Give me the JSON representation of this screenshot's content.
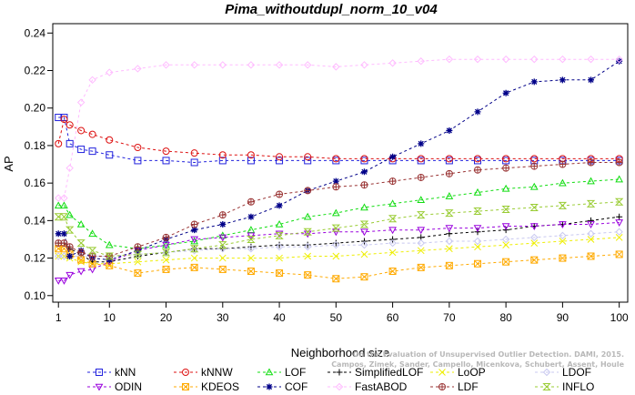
{
  "chart_data": {
    "type": "line",
    "title": "Pima_withoutdupl_norm_10_v04",
    "xlabel": "Neighborhood size",
    "ylabel": "AP",
    "xlim": [
      1,
      100
    ],
    "ylim": [
      0.1,
      0.245
    ],
    "xticks": [
      1,
      10,
      20,
      30,
      40,
      50,
      60,
      70,
      80,
      90,
      100
    ],
    "yticks": [
      0.1,
      0.12,
      0.14,
      0.16,
      0.18,
      0.2,
      0.22,
      0.24
    ],
    "grid": false,
    "legend_position": "bottom",
    "credit": "Campos, Zimek, Sander, Campello, Micenkova, Schubert, Assent, Houle",
    "credit_line1": "On the Evaluation of Unsupervised Outlier Detection. DAMI, 2015.",
    "x_sample": [
      1,
      2,
      3,
      5,
      7,
      10,
      15,
      20,
      25,
      30,
      35,
      40,
      45,
      50,
      55,
      60,
      65,
      70,
      75,
      80,
      85,
      90,
      95,
      100
    ],
    "series": [
      {
        "name": "kNN",
        "color": "#2222dd",
        "marker": "square",
        "values": [
          0.195,
          0.195,
          0.181,
          0.178,
          0.177,
          0.175,
          0.172,
          0.172,
          0.171,
          0.172,
          0.172,
          0.172,
          0.172,
          0.172,
          0.172,
          0.172,
          0.172,
          0.172,
          0.172,
          0.172,
          0.172,
          0.172,
          0.172,
          0.172
        ]
      },
      {
        "name": "kNNW",
        "color": "#dd1111",
        "marker": "circle",
        "values": [
          0.181,
          0.194,
          0.191,
          0.188,
          0.186,
          0.183,
          0.179,
          0.177,
          0.176,
          0.175,
          0.175,
          0.174,
          0.174,
          0.173,
          0.173,
          0.173,
          0.173,
          0.173,
          0.173,
          0.173,
          0.173,
          0.173,
          0.173,
          0.173
        ]
      },
      {
        "name": "LOF",
        "color": "#11dd11",
        "marker": "triangle-up",
        "values": [
          0.148,
          0.148,
          0.143,
          0.138,
          0.133,
          0.127,
          0.125,
          0.127,
          0.129,
          0.132,
          0.135,
          0.138,
          0.142,
          0.144,
          0.147,
          0.149,
          0.151,
          0.153,
          0.155,
          0.157,
          0.158,
          0.16,
          0.161,
          0.162
        ]
      },
      {
        "name": "SimplifiedLOF",
        "color": "#000000",
        "marker": "plus",
        "values": [
          0.128,
          0.128,
          0.125,
          0.122,
          0.118,
          0.118,
          0.121,
          0.123,
          0.125,
          0.125,
          0.126,
          0.127,
          0.127,
          0.128,
          0.129,
          0.13,
          0.131,
          0.133,
          0.134,
          0.135,
          0.137,
          0.138,
          0.14,
          0.142
        ]
      },
      {
        "name": "LoOP",
        "color": "#eeee00",
        "marker": "x",
        "values": [
          0.121,
          0.121,
          0.12,
          0.118,
          0.117,
          0.117,
          0.118,
          0.119,
          0.12,
          0.12,
          0.12,
          0.12,
          0.121,
          0.121,
          0.122,
          0.123,
          0.124,
          0.125,
          0.126,
          0.127,
          0.128,
          0.129,
          0.13,
          0.131
        ]
      },
      {
        "name": "LDOF",
        "color": "#c8c8f0",
        "marker": "diamond",
        "values": [
          0.121,
          0.121,
          0.121,
          0.121,
          0.121,
          0.121,
          0.122,
          0.123,
          0.124,
          0.125,
          0.125,
          0.126,
          0.126,
          0.127,
          0.127,
          0.128,
          0.128,
          0.129,
          0.129,
          0.13,
          0.131,
          0.132,
          0.133,
          0.134
        ]
      },
      {
        "name": "ODIN",
        "color": "#9900dd",
        "marker": "triangle-down",
        "values": [
          0.108,
          0.108,
          0.111,
          0.113,
          0.114,
          0.118,
          0.124,
          0.127,
          0.13,
          0.131,
          0.132,
          0.133,
          0.133,
          0.134,
          0.134,
          0.135,
          0.135,
          0.136,
          0.136,
          0.137,
          0.137,
          0.138,
          0.138,
          0.139
        ]
      },
      {
        "name": "KDEOS",
        "color": "#ffaa00",
        "marker": "square-x",
        "values": [
          0.125,
          0.125,
          0.122,
          0.119,
          0.117,
          0.116,
          0.112,
          0.114,
          0.115,
          0.114,
          0.113,
          0.112,
          0.111,
          0.109,
          0.11,
          0.113,
          0.115,
          0.116,
          0.117,
          0.118,
          0.119,
          0.12,
          0.121,
          0.122
        ]
      },
      {
        "name": "COF",
        "color": "#000088",
        "marker": "asterisk",
        "values": [
          0.133,
          0.133,
          0.121,
          0.124,
          0.12,
          0.119,
          0.124,
          0.13,
          0.135,
          0.138,
          0.142,
          0.148,
          0.156,
          0.161,
          0.166,
          0.174,
          0.181,
          0.188,
          0.198,
          0.208,
          0.214,
          0.215,
          0.215,
          0.225
        ]
      },
      {
        "name": "FastABOD",
        "color": "#ffbbff",
        "marker": "diamond",
        "values": [
          0.152,
          0.152,
          0.168,
          0.203,
          0.215,
          0.219,
          0.221,
          0.223,
          0.223,
          0.223,
          0.223,
          0.223,
          0.223,
          0.222,
          0.223,
          0.224,
          0.225,
          0.226,
          0.226,
          0.226,
          0.226,
          0.226,
          0.226,
          0.226
        ]
      },
      {
        "name": "LDF",
        "color": "#993333",
        "marker": "circle-plus",
        "values": [
          0.128,
          0.128,
          0.126,
          0.123,
          0.121,
          0.121,
          0.126,
          0.131,
          0.138,
          0.143,
          0.15,
          0.154,
          0.156,
          0.158,
          0.159,
          0.161,
          0.163,
          0.165,
          0.167,
          0.168,
          0.169,
          0.17,
          0.171,
          0.171
        ]
      },
      {
        "name": "INFLO",
        "color": "#99cc33",
        "marker": "hourglass",
        "values": [
          0.142,
          0.142,
          0.135,
          0.128,
          0.124,
          0.121,
          0.122,
          0.123,
          0.125,
          0.127,
          0.13,
          0.132,
          0.134,
          0.136,
          0.138,
          0.141,
          0.143,
          0.144,
          0.145,
          0.146,
          0.147,
          0.148,
          0.149,
          0.15
        ]
      }
    ],
    "legend_order": [
      "kNN",
      "kNNW",
      "LOF",
      "SimplifiedLOF",
      "LoOP",
      "LDOF",
      "ODIN",
      "KDEOS",
      "COF",
      "FastABOD",
      "LDF",
      "INFLO"
    ]
  }
}
